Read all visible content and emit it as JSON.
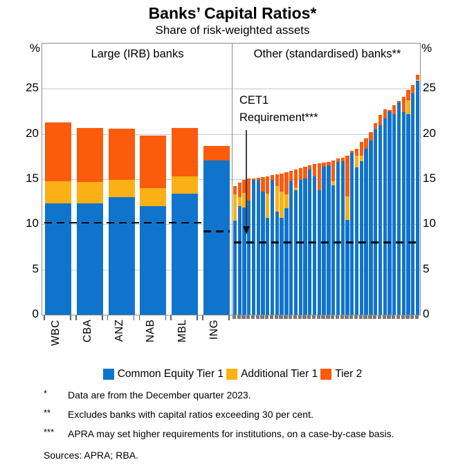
{
  "title": "Banks’ Capital Ratios*",
  "subtitle": "Share of risk-weighted assets",
  "axis": {
    "unit": "%"
  },
  "legend": [
    {
      "label": "Common Equity Tier 1",
      "color": "#1074CC"
    },
    {
      "label": "Additional Tier 1",
      "color": "#FBB116"
    },
    {
      "label": "Tier 2",
      "color": "#FA5B0D"
    }
  ],
  "colors": {
    "cet1": "#1074CC",
    "at1": "#FBB116",
    "tier2": "#FA5B0D",
    "grid": "#CBCBCB",
    "frame": "#8C8C8C",
    "requirement_line": "#000000",
    "annotation_arrow": "#3C3C3C"
  },
  "chart_data": {
    "type": "bar",
    "stacked": true,
    "unit": "%",
    "ylim": [
      0,
      30
    ],
    "yticks": [
      0,
      5,
      10,
      15,
      20,
      25
    ],
    "grid": true,
    "legend_position": "bottom",
    "segment_order": [
      "Common Equity Tier 1",
      "Additional Tier 1",
      "Tier 2"
    ],
    "annotation": {
      "line1": "CET1",
      "line2": "Requirement***",
      "target_value": 8.0
    },
    "panels": [
      {
        "title": "Large (IRB) banks",
        "categories": [
          "WBC",
          "CBA",
          "ANZ",
          "NAB",
          "MBL",
          "ING"
        ],
        "bars": [
          [
            12.3,
            2.5,
            6.5
          ],
          [
            12.3,
            2.4,
            6.0
          ],
          [
            13.0,
            1.9,
            5.7
          ],
          [
            12.0,
            2.0,
            5.8
          ],
          [
            13.4,
            1.9,
            5.4
          ],
          [
            17.1,
            0.0,
            1.6
          ]
        ],
        "requirement_lines": [
          {
            "value": 10.2,
            "applies_to": "WBC-MBL"
          },
          {
            "value": 9.25,
            "applies_to": "ING"
          }
        ]
      },
      {
        "title": "Other (standardised) banks**",
        "bar_count": 40,
        "bars": [
          [
            10.4,
            2.9,
            0.9
          ],
          [
            12.0,
            1.0,
            1.6
          ],
          [
            11.9,
            1.6,
            1.4
          ],
          [
            12.65,
            0,
            2.45
          ],
          [
            14.95,
            0,
            0.15
          ],
          [
            14.9,
            0,
            0.25
          ],
          [
            13.6,
            0,
            1.6
          ],
          [
            10.75,
            2.65,
            1.9
          ],
          [
            14.9,
            0,
            0.55
          ],
          [
            11.4,
            2.8,
            1.35
          ],
          [
            10.7,
            2.9,
            2.0
          ],
          [
            11.75,
            1.55,
            2.5
          ],
          [
            14.8,
            0,
            1.1
          ],
          [
            13.8,
            0.3,
            2.0
          ],
          [
            14.95,
            0,
            1.3
          ],
          [
            15.1,
            0,
            1.3
          ],
          [
            16.1,
            0,
            0.45
          ],
          [
            15.3,
            0,
            1.35
          ],
          [
            13.8,
            0,
            2.95
          ],
          [
            16.4,
            0,
            0.45
          ],
          [
            16.5,
            0,
            0.4
          ],
          [
            14.3,
            0.5,
            2.3
          ],
          [
            16.9,
            0,
            0.4
          ],
          [
            17.0,
            0,
            0.4
          ],
          [
            10.5,
            2.55,
            4.55
          ],
          [
            17.9,
            0,
            0.2
          ],
          [
            16.3,
            1.3,
            0.8
          ],
          [
            17.0,
            0.6,
            1.55
          ],
          [
            18.4,
            0,
            1.1
          ],
          [
            19.3,
            0,
            0.9
          ],
          [
            20.5,
            0,
            0.7
          ],
          [
            21.0,
            0,
            1.1
          ],
          [
            21.7,
            0,
            1.0
          ],
          [
            22.5,
            0,
            0.15
          ],
          [
            22.2,
            0,
            1.0
          ],
          [
            23.5,
            0,
            0.15
          ],
          [
            22.4,
            0,
            1.7
          ],
          [
            22.2,
            1.55,
            1.15
          ],
          [
            24.5,
            0,
            0.9
          ],
          [
            25.9,
            0.15,
            0.5
          ]
        ],
        "requirement_lines": [
          {
            "value": 8.0,
            "applies_to": "all"
          }
        ]
      }
    ]
  },
  "footnotes": [
    {
      "marker": "*",
      "text": "Data are from the December quarter 2023."
    },
    {
      "marker": "**",
      "text": "Excludes banks with capital ratios exceeding 30 per cent."
    },
    {
      "marker": "***",
      "text": "APRA may set higher requirements for institutions, on a case-by-case basis."
    }
  ],
  "sources": "Sources: APRA; RBA."
}
